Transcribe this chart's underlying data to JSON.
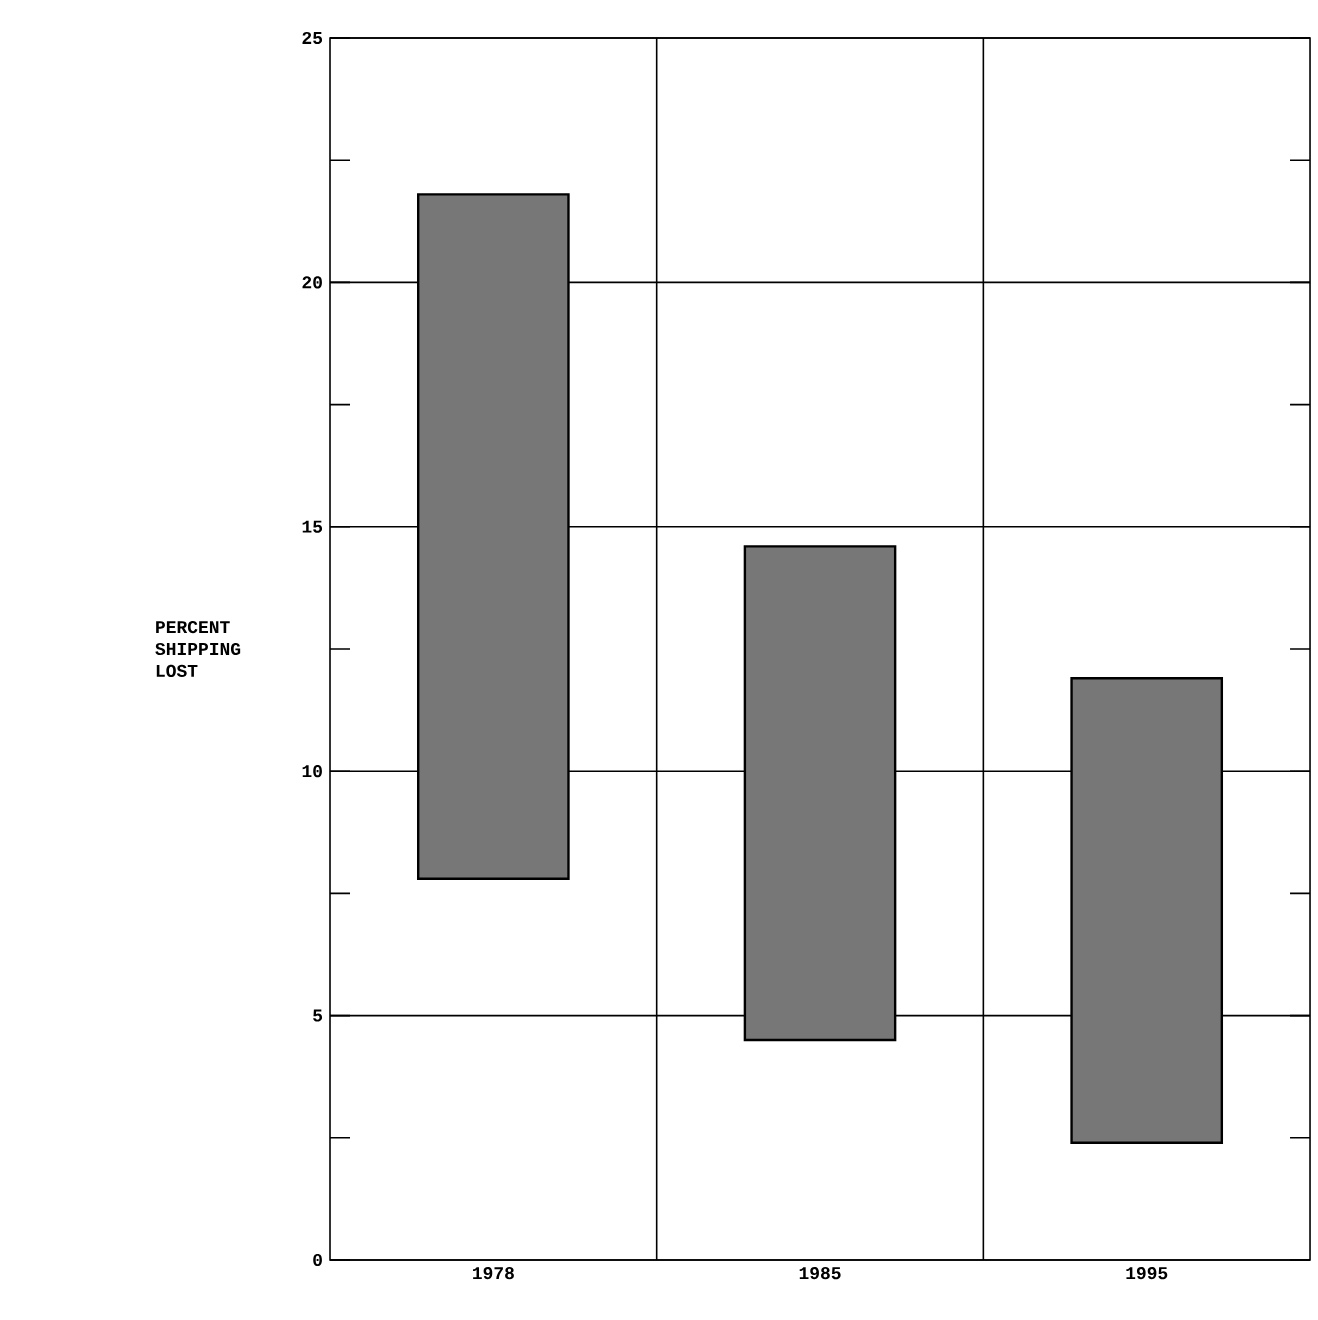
{
  "chart_data": {
    "type": "bar",
    "ylabel": "PERCENT SHIPPING LOST",
    "categories": [
      "1978",
      "1985",
      "1995"
    ],
    "base": [
      7.8,
      4.5,
      2.4
    ],
    "values": [
      14.0,
      10.1,
      9.5
    ],
    "color": "#777777",
    "ylim": [
      0,
      25
    ],
    "yticks": [
      0,
      5,
      10,
      15,
      20,
      25
    ],
    "grid": true
  }
}
